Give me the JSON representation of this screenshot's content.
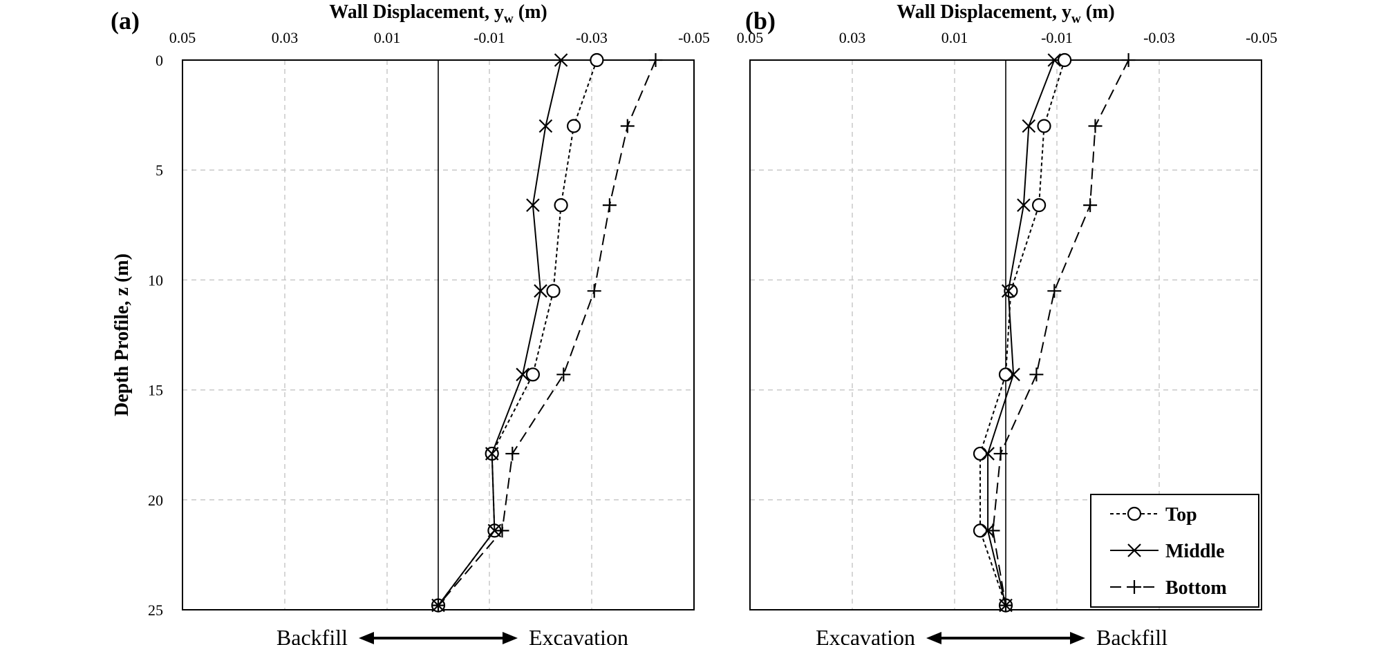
{
  "chart_data": [
    {
      "type": "line",
      "panel_label": "(a)",
      "title": "Wall Displacement, y",
      "title_sub": "w",
      "title_unit": " (m)",
      "ylabel": "Depth Profile, z (m)",
      "x_reversed": true,
      "xlim": [
        0.05,
        -0.05
      ],
      "ylim": [
        0,
        25
      ],
      "y_inverted": true,
      "x_tick_labels": [
        "0.05",
        "0.03",
        "0.01",
        "-0.01",
        "-0.03",
        "-0.05"
      ],
      "x_ticks": [
        0.05,
        0.03,
        0.01,
        -0.01,
        -0.03,
        -0.05
      ],
      "y_tick_labels": [
        "0",
        "5",
        "10",
        "15",
        "20",
        "25"
      ],
      "y_ticks": [
        0,
        5,
        10,
        15,
        20,
        25
      ],
      "grid": true,
      "zero_line": true,
      "bottom_left_label": "Backfill",
      "bottom_right_label": "Excavation",
      "series": [
        {
          "name": "Top",
          "marker": "circle",
          "dash": "short",
          "x": [
            -0.031,
            -0.0265,
            -0.024,
            -0.0225,
            -0.0185,
            -0.0105,
            -0.011,
            0.0
          ],
          "y": [
            0,
            3,
            6.6,
            10.5,
            14.3,
            17.9,
            21.4,
            24.8
          ]
        },
        {
          "name": "Middle",
          "marker": "x",
          "dash": "solid",
          "x": [
            -0.024,
            -0.021,
            -0.0185,
            -0.02,
            -0.0165,
            -0.0105,
            -0.011,
            0.0
          ],
          "y": [
            0,
            3,
            6.6,
            10.5,
            14.3,
            17.9,
            21.4,
            24.8
          ]
        },
        {
          "name": "Bottom",
          "marker": "plus",
          "dash": "long",
          "x": [
            -0.0425,
            -0.037,
            -0.0335,
            -0.0305,
            -0.0245,
            -0.0145,
            -0.0125,
            0.0
          ],
          "y": [
            0,
            3,
            6.6,
            10.5,
            14.3,
            17.9,
            21.4,
            24.8
          ]
        }
      ]
    },
    {
      "type": "line",
      "panel_label": "(b)",
      "title": "Wall Displacement, y",
      "title_sub": "w",
      "title_unit": " (m)",
      "ylabel": "",
      "x_reversed": true,
      "xlim": [
        0.05,
        -0.05
      ],
      "ylim": [
        0,
        25
      ],
      "y_inverted": true,
      "x_tick_labels": [
        "0.05",
        "0.03",
        "0.01",
        "-0.01",
        "-0.03",
        "-0.05"
      ],
      "x_ticks": [
        0.05,
        0.03,
        0.01,
        -0.01,
        -0.03,
        -0.05
      ],
      "y_tick_labels": [],
      "y_ticks": [
        0,
        5,
        10,
        15,
        20,
        25
      ],
      "grid": true,
      "zero_line": true,
      "bottom_left_label": "Excavation",
      "bottom_right_label": "Backfill",
      "legend": {
        "placement": "bottom-right",
        "entries": [
          "Top",
          "Middle",
          "Bottom"
        ]
      },
      "series": [
        {
          "name": "Top",
          "marker": "circle",
          "dash": "short",
          "x": [
            -0.0115,
            -0.0075,
            -0.0065,
            -0.001,
            0.0,
            0.005,
            0.005,
            0.0
          ],
          "y": [
            0,
            3,
            6.6,
            10.5,
            14.3,
            17.9,
            21.4,
            24.8
          ]
        },
        {
          "name": "Middle",
          "marker": "x",
          "dash": "solid",
          "x": [
            -0.0095,
            -0.0045,
            -0.0035,
            -0.0005,
            -0.0015,
            0.0035,
            0.0035,
            0.0
          ],
          "y": [
            0,
            3,
            6.6,
            10.5,
            14.3,
            17.9,
            21.4,
            24.8
          ]
        },
        {
          "name": "Bottom",
          "marker": "plus",
          "dash": "long",
          "x": [
            -0.024,
            -0.0175,
            -0.0165,
            -0.0095,
            -0.006,
            0.001,
            0.0025,
            0.0
          ],
          "y": [
            0,
            3,
            6.6,
            10.5,
            14.3,
            17.9,
            21.4,
            24.8
          ]
        }
      ]
    }
  ]
}
